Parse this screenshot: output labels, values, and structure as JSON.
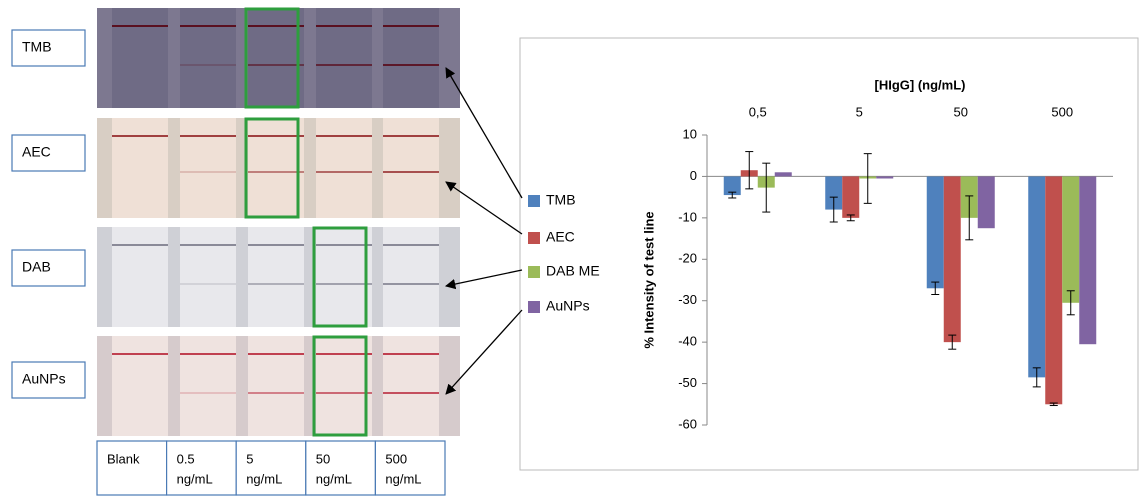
{
  "panel": {
    "rows": [
      "TMB",
      "AEC",
      "DAB",
      "AuNPs"
    ],
    "columns": [
      [
        "Blank"
      ],
      [
        "0.5",
        "ng/mL"
      ],
      [
        "5",
        "ng/mL"
      ],
      [
        "50",
        "ng/mL"
      ],
      [
        "500",
        "ng/mL"
      ]
    ]
  },
  "chart_data": {
    "type": "bar",
    "x_title": "[HIgG] (ng/mL)",
    "y_title": "% Intensity of test line",
    "categories": [
      "0,5",
      "5",
      "50",
      "500"
    ],
    "ylim": [
      -60,
      10
    ],
    "yticks": [
      10,
      0,
      -10,
      -20,
      -30,
      -40,
      -50,
      -60
    ],
    "series": [
      {
        "name": "TMB",
        "color": "#4f81bd",
        "values": [
          -4.5,
          -8,
          -27,
          -48.5
        ],
        "errors": [
          0.7,
          3,
          1.5,
          2.3
        ]
      },
      {
        "name": "AEC",
        "color": "#c0504d",
        "values": [
          1.5,
          -10,
          -40,
          -55
        ],
        "errors": [
          4.5,
          0.7,
          1.7,
          0.3
        ]
      },
      {
        "name": "DAB ME",
        "color": "#9bbb59",
        "values": [
          -2.7,
          -0.5,
          -10,
          -30.5
        ],
        "errors": [
          5.9,
          6,
          5.3,
          2.9
        ]
      },
      {
        "name": "AuNPs",
        "color": "#8064a2",
        "values": [
          1,
          -0.5,
          -12.5,
          -40.5
        ],
        "errors": [
          null,
          null,
          null,
          null
        ]
      }
    ]
  }
}
